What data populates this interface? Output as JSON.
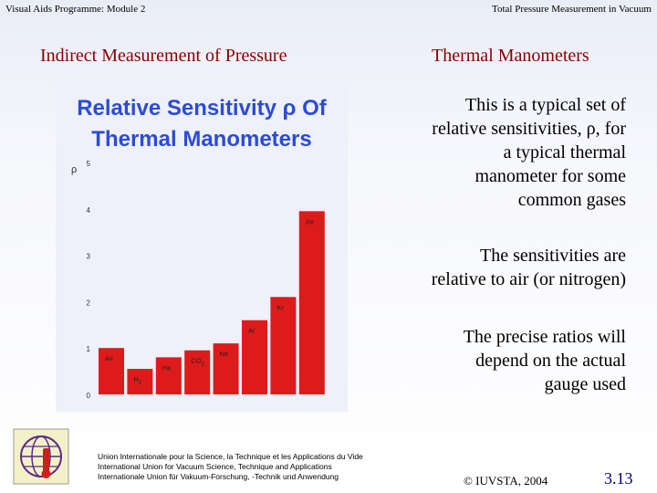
{
  "header": {
    "left": "Visual Aids Programme: Module 2",
    "right": "Total Pressure Measurement in Vacuum"
  },
  "titles": {
    "left": "Indirect Measurement of Pressure",
    "right": "Thermal Manometers"
  },
  "body": {
    "p1": [
      "This is a typical set of",
      "relative sensitivities, ρ, for",
      "a typical thermal",
      "manometer for some",
      "common gases"
    ],
    "p2": [
      "The sensitivities are",
      "relative to air (or nitrogen)"
    ],
    "p3": [
      "The precise ratios will",
      "depend on the actual",
      "gauge used"
    ]
  },
  "footer": {
    "orgs": [
      "Union Internationale pour la Science, la Technique et les Applications du Vide",
      "International Union for Vacuum Science, Technique and Applications",
      "Internationale Union für Vakuum-Forschung, -Technik und Anwendung"
    ],
    "copyright": "© IUVSTA, 2004",
    "page": "3.13"
  },
  "colors": {
    "bar": "#dd1b1b",
    "chart_title": "#2c4bd6",
    "slide_title": "#8b0000"
  },
  "chart_data": {
    "type": "bar",
    "title": [
      "Relative Sensitivity ρ Of",
      "Thermal Manometers"
    ],
    "ylabel": "ρ",
    "ylim": [
      0,
      5
    ],
    "yticks": [
      0,
      1,
      2,
      3,
      4,
      5
    ],
    "grid": false,
    "categories": [
      {
        "main": "Air",
        "sub": ""
      },
      {
        "main": "H",
        "sub": "2"
      },
      {
        "main": "He",
        "sub": ""
      },
      {
        "main": "CO",
        "sub": "2"
      },
      {
        "main": "Ne",
        "sub": ""
      },
      {
        "main": "Ar",
        "sub": ""
      },
      {
        "main": "Kr",
        "sub": ""
      },
      {
        "main": "Xe",
        "sub": ""
      }
    ],
    "values": [
      1.0,
      0.55,
      0.8,
      0.95,
      1.1,
      1.6,
      2.1,
      3.95
    ]
  }
}
